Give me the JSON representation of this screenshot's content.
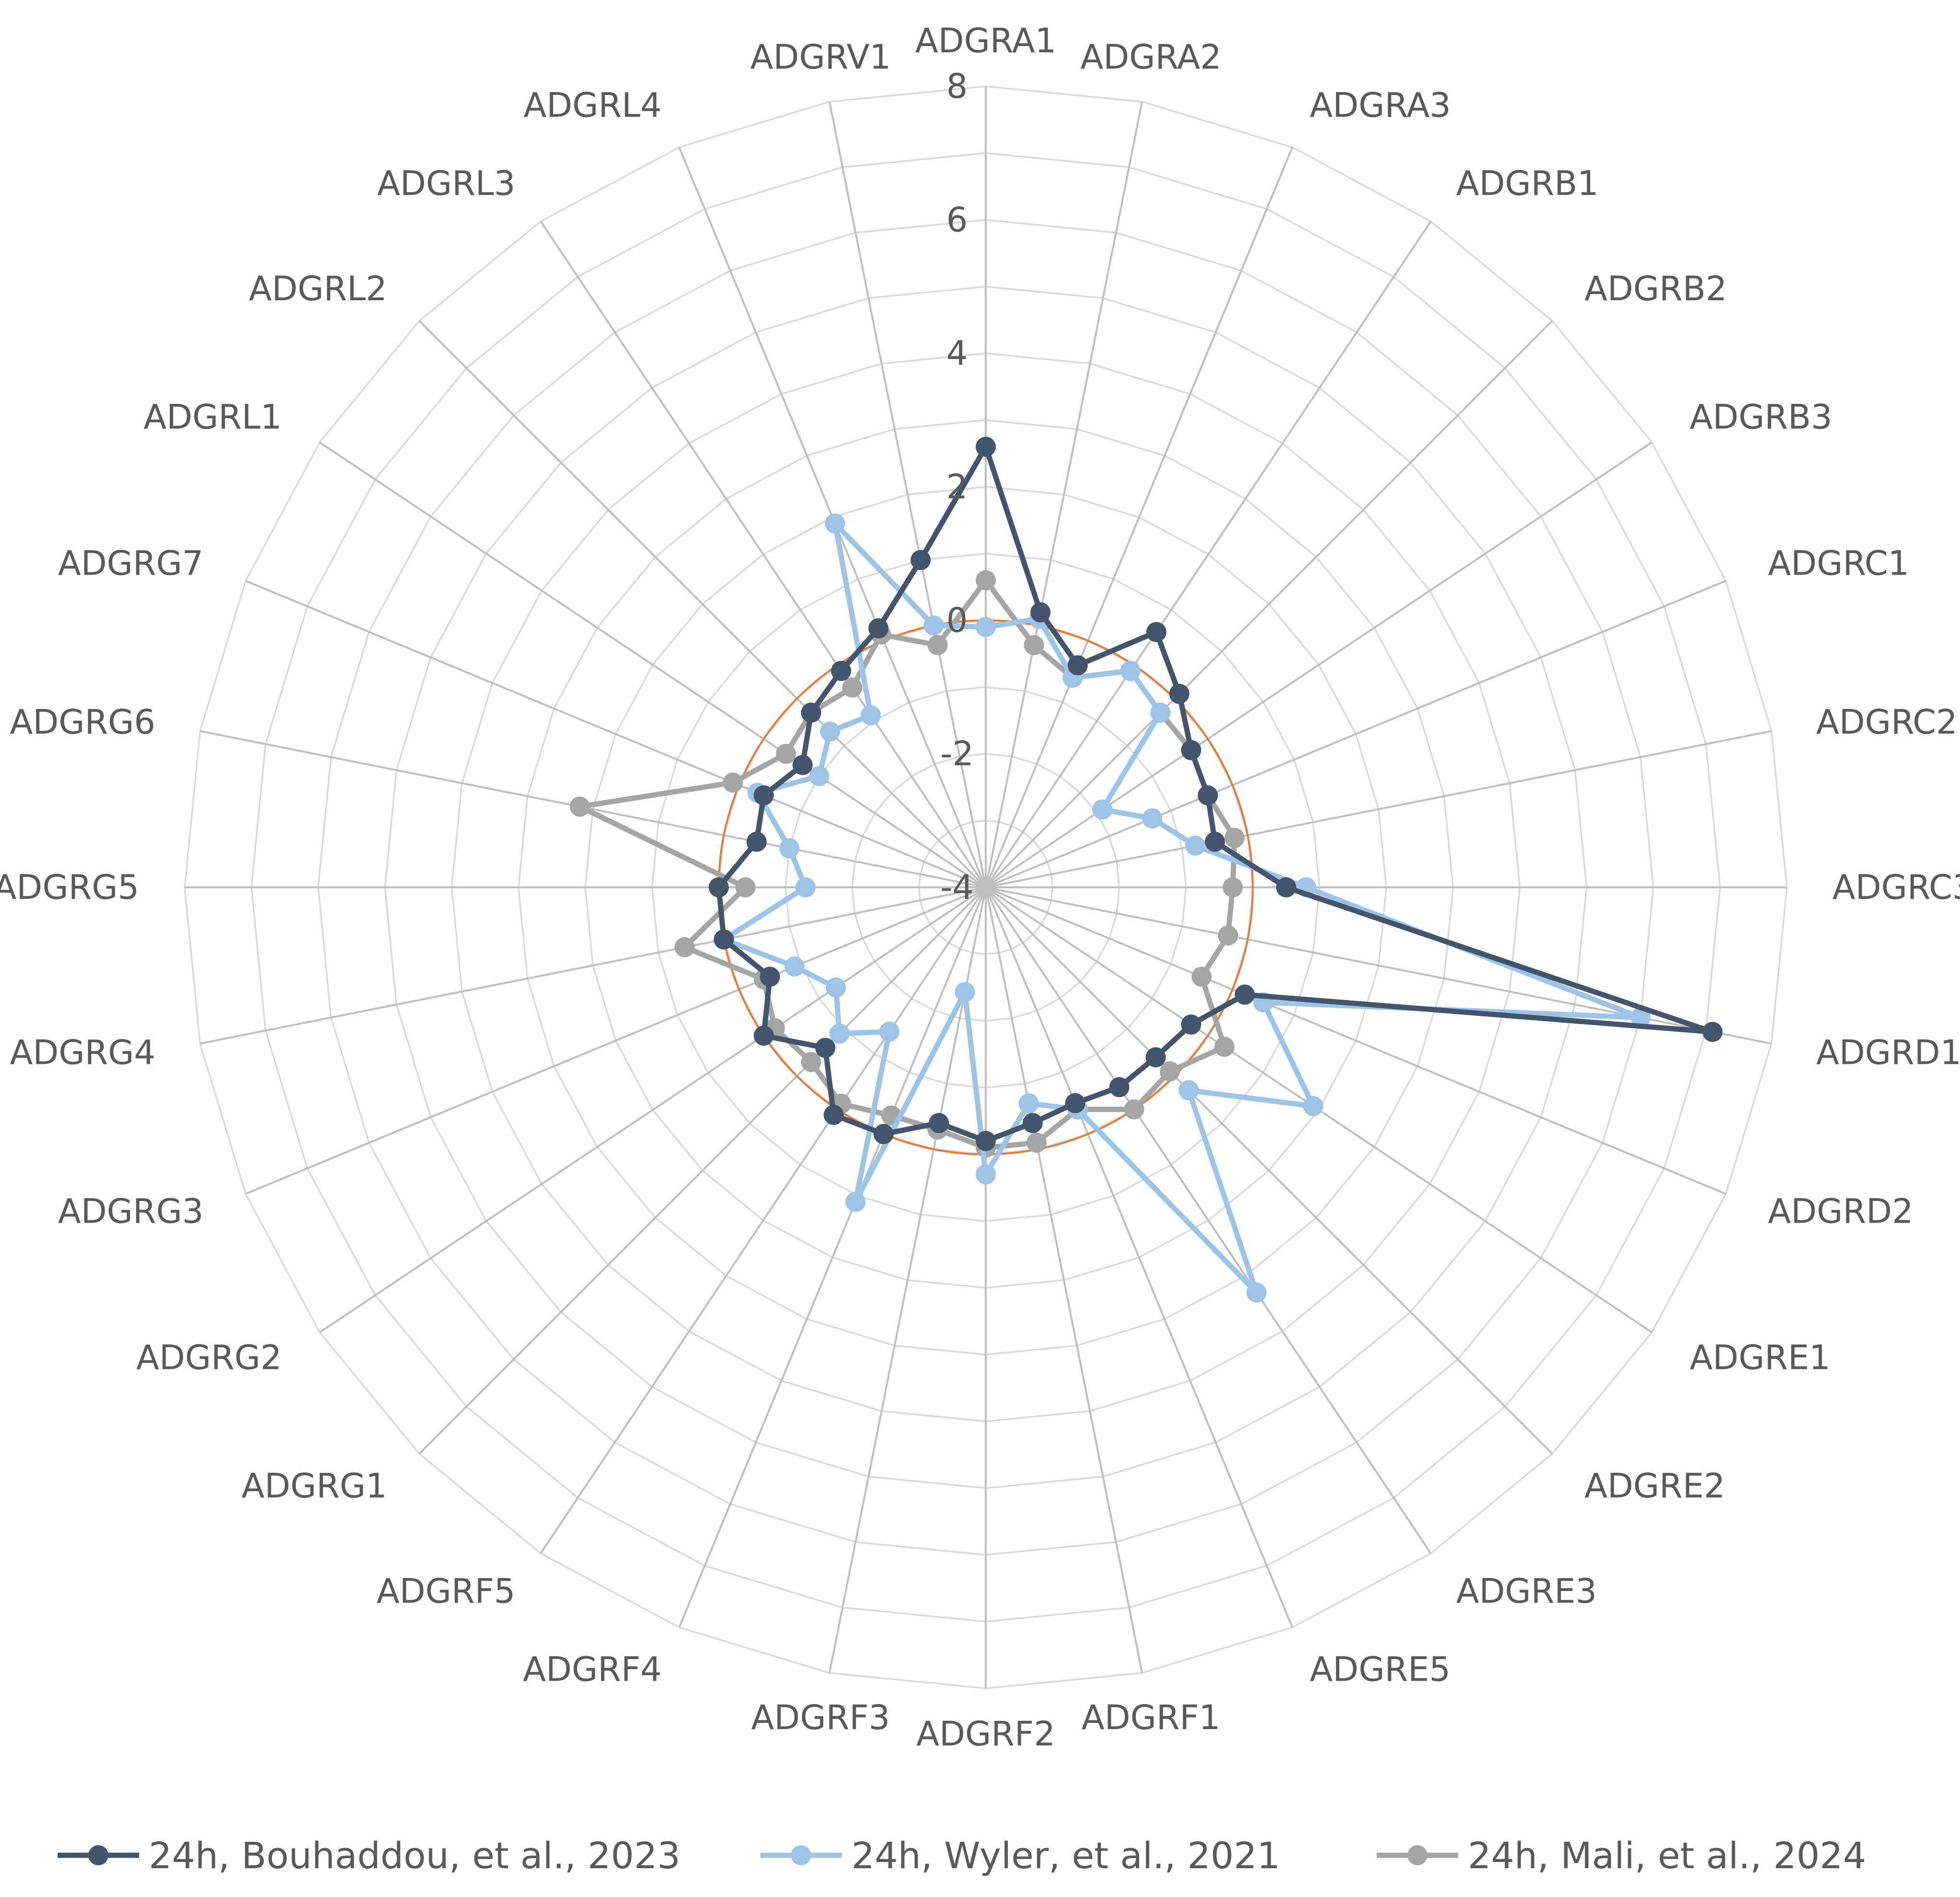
{
  "chart_data": {
    "type": "radar",
    "title": "",
    "categories": [
      "ADGRA1",
      "ADGRA2",
      "ADGRA3",
      "ADGRB1",
      "ADGRB2",
      "ADGRB3",
      "ADGRC1",
      "ADGRC2",
      "ADGRC3",
      "ADGRD1",
      "ADGRD2",
      "ADGRE1",
      "ADGRE2",
      "ADGRE3",
      "ADGRE5",
      "ADGRF1",
      "ADGRF2",
      "ADGRF3",
      "ADGRF4",
      "ADGRF5",
      "ADGRG1",
      "ADGRG2",
      "ADGRG3",
      "ADGRG4",
      "ADGRG5",
      "ADGRG6",
      "ADGRG7",
      "ADGRL1",
      "ADGRL2",
      "ADGRL3",
      "ADGRL4",
      "ADGRV1"
    ],
    "r_range": [
      -4,
      8
    ],
    "r_ticks": [
      -4,
      -2,
      0,
      2,
      4,
      6,
      8
    ],
    "r_tick_labels": [
      "-4",
      "-2",
      "0",
      "2",
      "4",
      "6",
      "8"
    ],
    "reference_circle": {
      "value": 0,
      "color": "#E07B39"
    },
    "grid": true,
    "legend_position": "bottom",
    "series": [
      {
        "name": "24h, Bouhaddou, et al., 2023",
        "color": "#44546A",
        "values": [
          2.6,
          0.2,
          -0.4,
          0.6,
          0.1,
          -0.3,
          -0.4,
          -0.5,
          0.5,
          7.1,
          0.2,
          -0.3,
          -0.4,
          -0.4,
          -0.5,
          -0.4,
          -0.2,
          -0.4,
          0.0,
          0.1,
          -0.6,
          0.0,
          -0.5,
          0.0,
          0.0,
          -0.5,
          -0.4,
          -0.7,
          -0.3,
          -0.1,
          0.2,
          1.0
        ]
      },
      {
        "name": "24h, Wyler, et al., 2021",
        "color": "#9DC3E6",
        "values": [
          -0.1,
          0.1,
          -0.6,
          -0.1,
          -0.3,
          -1.9,
          -1.3,
          -0.8,
          0.8,
          6.0,
          0.5,
          1.9,
          0.3,
          3.3,
          -0.4,
          -0.7,
          0.3,
          -2.4,
          1.1,
          -1.4,
          -0.9,
          -1.3,
          -0.9,
          0.0,
          -1.3,
          -1.0,
          -0.3,
          -1.0,
          -0.7,
          -0.9,
          1.9,
          0.0
        ]
      },
      {
        "name": "24h, Mali, et al., 2024",
        "color": "#A5A5A5",
        "values": [
          0.6,
          -0.3,
          -0.6,
          -0.1,
          -0.3,
          -0.3,
          -0.4,
          -0.2,
          -0.3,
          -0.3,
          -0.5,
          0.3,
          -0.1,
          0.0,
          -0.4,
          -0.1,
          -0.1,
          -0.3,
          -0.3,
          -0.1,
          -0.3,
          -0.2,
          -0.4,
          0.6,
          -0.4,
          2.2,
          0.1,
          -0.4,
          -0.3,
          -0.4,
          0.1,
          -0.3
        ]
      }
    ]
  }
}
